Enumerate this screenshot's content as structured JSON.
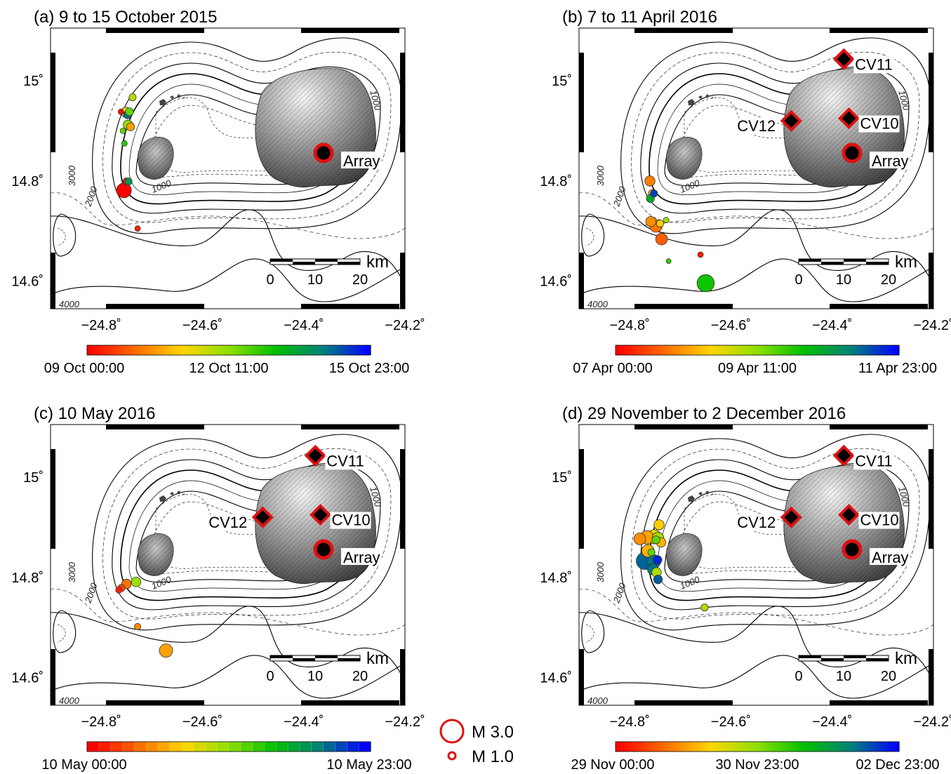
{
  "panels": [
    {
      "title": "(a) 9 to 15 October 2015",
      "colorbar": {
        "start": "09 Oct 00:00",
        "mid": "12 Oct 11:00",
        "end": "15 Oct 23:00",
        "stepped": false
      },
      "stations": [],
      "array_label": "Array",
      "events": [
        {
          "lon": -24.738,
          "lat": 14.967,
          "mag": 1.2,
          "t": 0.45
        },
        {
          "lon": -24.761,
          "lat": 14.938,
          "mag": 1.0,
          "t": 0.02
        },
        {
          "lon": -24.751,
          "lat": 14.937,
          "mag": 1.6,
          "t": 0.35
        },
        {
          "lon": -24.748,
          "lat": 14.932,
          "mag": 1.3,
          "t": 0.85
        },
        {
          "lon": -24.744,
          "lat": 14.938,
          "mag": 1.3,
          "t": 0.55
        },
        {
          "lon": -24.747,
          "lat": 14.912,
          "mag": 1.5,
          "t": 0.48
        },
        {
          "lon": -24.742,
          "lat": 14.908,
          "mag": 1.3,
          "t": 0.25
        },
        {
          "lon": -24.757,
          "lat": 14.9,
          "mag": 1.0,
          "t": 0.55
        },
        {
          "lon": -24.754,
          "lat": 14.875,
          "mag": 1.0,
          "t": 0.62
        },
        {
          "lon": -24.75,
          "lat": 14.799,
          "mag": 1.2,
          "t": 0.03
        },
        {
          "lon": -24.746,
          "lat": 14.799,
          "mag": 1.2,
          "t": 0.78
        },
        {
          "lon": -24.755,
          "lat": 14.781,
          "mag": 2.2,
          "t": 0.0
        },
        {
          "lon": -24.728,
          "lat": 14.705,
          "mag": 1.0,
          "t": 0.05
        }
      ]
    },
    {
      "title": "(b) 7 to 11 April 2016",
      "colorbar": {
        "start": "07 Apr 00:00",
        "mid": "09 Apr 11:00",
        "end": "11 Apr 23:00",
        "stepped": false
      },
      "stations": [
        {
          "label": "CV11",
          "lon": -24.377,
          "lat": 15.043,
          "label_side": "right"
        },
        {
          "label": "CV12",
          "lon": -24.481,
          "lat": 14.92,
          "label_side": "left"
        },
        {
          "label": "CV10",
          "lon": -24.367,
          "lat": 14.925,
          "label_side": "right"
        }
      ],
      "array_label": "Array",
      "events": [
        {
          "lon": -24.76,
          "lat": 14.8,
          "mag": 1.6,
          "t": 0.2
        },
        {
          "lon": -24.755,
          "lat": 14.775,
          "mag": 1.3,
          "t": 0.28
        },
        {
          "lon": -24.759,
          "lat": 14.765,
          "mag": 1.3,
          "t": 0.72
        },
        {
          "lon": -24.752,
          "lat": 14.775,
          "mag": 1.2,
          "t": 0.92
        },
        {
          "lon": -24.758,
          "lat": 14.719,
          "mag": 1.6,
          "t": 0.22
        },
        {
          "lon": -24.748,
          "lat": 14.71,
          "mag": 1.9,
          "t": 0.18
        },
        {
          "lon": -24.74,
          "lat": 14.715,
          "mag": 1.2,
          "t": 0.32
        },
        {
          "lon": -24.728,
          "lat": 14.722,
          "mag": 1.0,
          "t": 0.48
        },
        {
          "lon": -24.737,
          "lat": 14.684,
          "mag": 1.8,
          "t": 0.15
        },
        {
          "lon": -24.66,
          "lat": 14.653,
          "mag": 1.0,
          "t": 0.05
        },
        {
          "lon": -24.723,
          "lat": 14.64,
          "mag": 0.9,
          "t": 0.6
        },
        {
          "lon": -24.65,
          "lat": 14.596,
          "mag": 2.5,
          "t": 0.65
        }
      ]
    },
    {
      "title": "(c) 10 May 2016",
      "colorbar": {
        "start": "10 May 00:00",
        "mid": "",
        "end": "10 May 23:00",
        "stepped": true
      },
      "stations": [
        {
          "label": "CV11",
          "lon": -24.377,
          "lat": 15.043,
          "label_side": "right"
        },
        {
          "label": "CV12",
          "lon": -24.481,
          "lat": 14.92,
          "label_side": "left"
        },
        {
          "label": "CV10",
          "lon": -24.367,
          "lat": 14.925,
          "label_side": "right"
        }
      ],
      "array_label": "Array",
      "events": [
        {
          "lon": -24.765,
          "lat": 14.775,
          "mag": 1.1,
          "t": 0.05
        },
        {
          "lon": -24.76,
          "lat": 14.779,
          "mag": 1.2,
          "t": 0.12
        },
        {
          "lon": -24.75,
          "lat": 14.787,
          "mag": 1.5,
          "t": 0.18
        },
        {
          "lon": -24.731,
          "lat": 14.791,
          "mag": 1.5,
          "t": 0.48
        },
        {
          "lon": -24.728,
          "lat": 14.702,
          "mag": 1.1,
          "t": 0.22
        },
        {
          "lon": -24.672,
          "lat": 14.654,
          "mag": 2.0,
          "t": 0.25
        }
      ]
    },
    {
      "title": "(d) 29 November to 2 December 2016",
      "colorbar": {
        "start": "29 Nov 00:00",
        "mid": "30 Nov 23:00",
        "end": "02 Dec 23:00",
        "stepped": false
      },
      "stations": [
        {
          "label": "CV11",
          "lon": -24.377,
          "lat": 15.043,
          "label_side": "right"
        },
        {
          "label": "CV12",
          "lon": -24.481,
          "lat": 14.92,
          "label_side": "left"
        },
        {
          "label": "CV10",
          "lon": -24.367,
          "lat": 14.925,
          "label_side": "right"
        }
      ],
      "array_label": "Array",
      "events": [
        {
          "lon": -24.742,
          "lat": 14.905,
          "mag": 1.6,
          "t": 0.32
        },
        {
          "lon": -24.78,
          "lat": 14.877,
          "mag": 1.8,
          "t": 0.22
        },
        {
          "lon": -24.766,
          "lat": 14.88,
          "mag": 2.0,
          "t": 0.25
        },
        {
          "lon": -24.752,
          "lat": 14.881,
          "mag": 2.1,
          "t": 0.38
        },
        {
          "lon": -24.744,
          "lat": 14.878,
          "mag": 1.8,
          "t": 0.45
        },
        {
          "lon": -24.748,
          "lat": 14.875,
          "mag": 1.3,
          "t": 0.55
        },
        {
          "lon": -24.738,
          "lat": 14.87,
          "mag": 1.5,
          "t": 0.28
        },
        {
          "lon": -24.764,
          "lat": 14.853,
          "mag": 1.9,
          "t": 0.28
        },
        {
          "lon": -24.757,
          "lat": 14.85,
          "mag": 1.2,
          "t": 0.55
        },
        {
          "lon": -24.77,
          "lat": 14.833,
          "mag": 2.5,
          "t": 0.87
        },
        {
          "lon": -24.752,
          "lat": 14.832,
          "mag": 2.0,
          "t": 0.85
        },
        {
          "lon": -24.745,
          "lat": 14.835,
          "mag": 1.4,
          "t": 0.95
        },
        {
          "lon": -24.754,
          "lat": 14.816,
          "mag": 1.7,
          "t": 0.85
        },
        {
          "lon": -24.747,
          "lat": 14.81,
          "mag": 1.5,
          "t": 0.45
        },
        {
          "lon": -24.744,
          "lat": 14.796,
          "mag": 1.4,
          "t": 0.88
        },
        {
          "lon": -24.652,
          "lat": 14.74,
          "mag": 1.2,
          "t": 0.45
        }
      ]
    }
  ],
  "map": {
    "lon_ticks": [
      "−24.8˚",
      "−24.6˚",
      "−24.4˚",
      "−24.2˚"
    ],
    "lat_ticks": [
      "15˚",
      "14.8˚",
      "14.6˚"
    ],
    "contour_labels": [
      "1000",
      "2000",
      "3000",
      "1000",
      "4000"
    ],
    "scale_bar": {
      "unit": "km",
      "ticks": [
        "0",
        "10",
        "20"
      ]
    }
  },
  "legend": {
    "items": [
      {
        "label": "M 3.0",
        "mag": 3.0
      },
      {
        "label": "M 1.0",
        "mag": 1.0
      }
    ]
  },
  "colors": {
    "event_outline": "#333333",
    "station_red": "#dd1111",
    "array_red": "#dd1111",
    "colormap": [
      "#ff0000",
      "#ff6a00",
      "#ffd600",
      "#8ee000",
      "#00c000",
      "#00827a",
      "#0000ff"
    ]
  }
}
